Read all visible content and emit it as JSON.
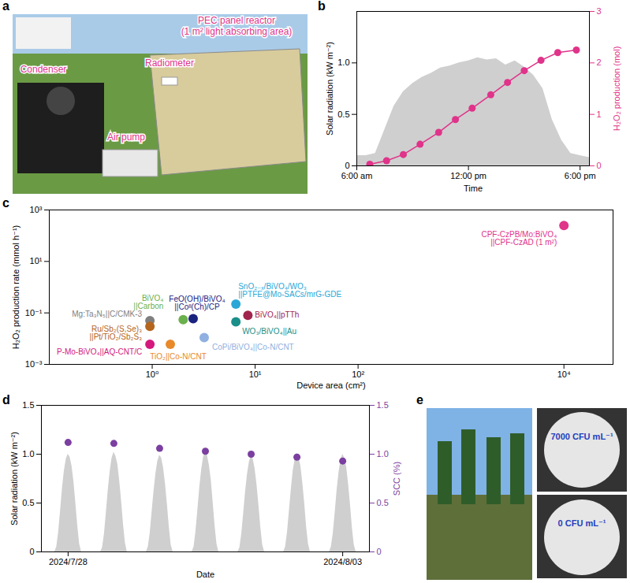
{
  "chart_data": [
    {
      "panel": "a",
      "type": "photo",
      "color": "#e0338a",
      "annotations": [
        "PEC panel reactor (1 m² light absorbing area)",
        "Radiometer",
        "Condenser",
        "Air pump"
      ]
    },
    {
      "panel": "b",
      "type": "combo",
      "x_label": "Time",
      "y_label": "Solar radiation (kW m⁻²)",
      "y2_label": "H₂O₂ production (mol)",
      "xlim": [
        6,
        18.5
      ],
      "xticks": [
        {
          "value": 6,
          "label": "6:00 am"
        },
        {
          "value": 12,
          "label": "12:00 pm"
        },
        {
          "value": 18,
          "label": "6:00 pm"
        }
      ],
      "ylim": [
        0,
        1.5
      ],
      "yticks": [
        0,
        0.5,
        {
          "value": 1,
          "label": "1.0"
        }
      ],
      "y2lim": [
        0,
        3
      ],
      "y2ticks": [
        0,
        1,
        2,
        3
      ],
      "series": [
        {
          "type": "area",
          "color": "#cfcfcf",
          "x": [
            6,
            6.5,
            7,
            7.5,
            8,
            8.5,
            9,
            9.5,
            10,
            10.5,
            11,
            11.5,
            12,
            12.5,
            13,
            13.5,
            14,
            14.5,
            15,
            15.5,
            16,
            16.5,
            17,
            17.5,
            18,
            18.5
          ],
          "values": [
            0.1,
            0.1,
            0.12,
            0.35,
            0.58,
            0.72,
            0.8,
            0.86,
            0.9,
            0.95,
            0.97,
            1.0,
            1.02,
            1.05,
            1.03,
            1.04,
            0.98,
            1.02,
            0.96,
            0.88,
            0.75,
            0.45,
            0.25,
            0.12,
            0.1,
            0.08
          ]
        },
        {
          "type": "line",
          "marker": "circle",
          "color": "#e0338a",
          "axis": "y2",
          "x": [
            6.7,
            7.6,
            8.5,
            9.4,
            10.4,
            11.3,
            12.2,
            13.2,
            14.1,
            15.0,
            15.9,
            16.8,
            17.8
          ],
          "values": [
            0.03,
            0.1,
            0.22,
            0.42,
            0.65,
            0.9,
            1.12,
            1.38,
            1.62,
            1.85,
            2.05,
            2.2,
            2.25
          ]
        }
      ]
    },
    {
      "panel": "c",
      "type": "scatter",
      "log": true,
      "x_label": "Device area (cm²)",
      "y_label": "H₂O₂ production rate (mmol h⁻¹)",
      "xlim": [
        0.1,
        30000
      ],
      "xticks": [
        {
          "value": 1,
          "label": "10⁰"
        },
        {
          "value": 10,
          "label": "10¹"
        },
        {
          "value": 100,
          "label": "10²"
        },
        {
          "value": 10000,
          "label": "10⁴"
        }
      ],
      "ylim": [
        0.001,
        1000
      ],
      "yticks": [
        {
          "value": 0.001,
          "label": "10⁻³"
        },
        {
          "value": 0.1,
          "label": "10⁻¹"
        },
        {
          "value": 10,
          "label": "10¹"
        },
        {
          "value": 1000,
          "label": "10³"
        }
      ],
      "series": [
        {
          "name": "CPF-CzPB/Mo:BiVO₄||CPF-CzAD (1 m²)",
          "color": "#e0338a",
          "x": [
            10000
          ],
          "values": [
            250
          ]
        },
        {
          "name": "SnO₂₋ₓ/BiVO₄/WO₃||PTFE@Mo-SACs/mrG-GDE",
          "color": "#2aa7d6",
          "x": [
            6.5
          ],
          "values": [
            0.22
          ]
        },
        {
          "name": "BiVO₄||pTTh",
          "color": "#a0244e",
          "x": [
            8.5
          ],
          "values": [
            0.08
          ]
        },
        {
          "name": "WO₃/BiVO₄||Au",
          "color": "#1a8f8a",
          "x": [
            6.5
          ],
          "values": [
            0.045
          ]
        },
        {
          "name": "FeO(OH)/BiVO₄||Coᴵᴵ(Ch)/CP",
          "color": "#1a237e",
          "x": [
            2.5
          ],
          "values": [
            0.06
          ]
        },
        {
          "name": "BiVO₄||Carbon",
          "color": "#6ab04c",
          "x": [
            2.0
          ],
          "values": [
            0.055
          ]
        },
        {
          "name": "CoPi/BiVO₄||Co-N/CNT",
          "color": "#8fb0e0",
          "x": [
            3.2
          ],
          "values": [
            0.011
          ]
        },
        {
          "name": "Mg:Ta₃N₅||C/CMK-3",
          "color": "#7f7f7f",
          "x": [
            0.95
          ],
          "values": [
            0.05
          ]
        },
        {
          "name": "Ru/Sb₂(S,Se)₃||Pt/TiO₂/Sb₂S₃",
          "color": "#b5651d",
          "x": [
            0.95
          ],
          "values": [
            0.03
          ]
        },
        {
          "name": "P-Mo-BiVO₄||AQ-CNT/C",
          "color": "#d4187d",
          "x": [
            0.95
          ],
          "values": [
            0.006
          ]
        },
        {
          "name": "TiO₂||Co-N/CNT",
          "color": "#e8892a",
          "x": [
            1.5
          ],
          "values": [
            0.006
          ]
        }
      ]
    },
    {
      "panel": "d",
      "type": "combo",
      "x_label": "Date",
      "y_label": "Solar radiation (kW m⁻²)",
      "y2_label": "SCC (%)",
      "xlim": [
        "2024-07-27T22:00",
        "2024-08-04T02:00"
      ],
      "xticks": [
        {
          "value": "2024-07-28T12:00",
          "label": "2024/7/28"
        },
        {
          "value": "2024-08-03T12:00",
          "label": "2024/8/03"
        }
      ],
      "ylim": [
        0,
        1.5
      ],
      "yticks": [
        0,
        0.5,
        {
          "value": 1,
          "label": "1.0"
        },
        1.5
      ],
      "y2lim": [
        0,
        1.5
      ],
      "y2ticks": [
        0,
        0.5,
        {
          "value": 1,
          "label": "1.0"
        },
        1.5
      ],
      "series": [
        {
          "type": "area",
          "color": "#cfcfcf",
          "x": [
            "2024-07-28T05:00",
            "2024-07-28T06:00",
            "2024-07-28T07:00",
            "2024-07-28T08:00",
            "2024-07-28T09:00",
            "2024-07-28T10:00",
            "2024-07-28T11:00",
            "2024-07-28T12:00",
            "2024-07-28T13:00",
            "2024-07-28T14:00",
            "2024-07-28T15:00",
            "2024-07-28T16:00",
            "2024-07-28T17:00",
            "2024-07-28T18:00",
            "2024-07-28T19:00",
            "2024-07-29T05:00",
            "2024-07-29T06:00",
            "2024-07-29T07:00",
            "2024-07-29T08:00",
            "2024-07-29T09:00",
            "2024-07-29T10:00",
            "2024-07-29T11:00",
            "2024-07-29T12:00",
            "2024-07-29T13:00",
            "2024-07-29T14:00",
            "2024-07-29T15:00",
            "2024-07-29T16:00",
            "2024-07-29T17:00",
            "2024-07-29T18:00",
            "2024-07-29T19:00",
            "2024-07-30T05:00",
            "2024-07-30T06:00",
            "2024-07-30T07:00",
            "2024-07-30T08:00",
            "2024-07-30T09:00",
            "2024-07-30T10:00",
            "2024-07-30T11:00",
            "2024-07-30T12:00",
            "2024-07-30T13:00",
            "2024-07-30T14:00",
            "2024-07-30T15:00",
            "2024-07-30T16:00",
            "2024-07-30T17:00",
            "2024-07-30T18:00",
            "2024-07-30T19:00",
            "2024-07-31T05:00",
            "2024-07-31T06:00",
            "2024-07-31T07:00",
            "2024-07-31T08:00",
            "2024-07-31T09:00",
            "2024-07-31T10:00",
            "2024-07-31T11:00",
            "2024-07-31T12:00",
            "2024-07-31T13:00",
            "2024-07-31T14:00",
            "2024-07-31T15:00",
            "2024-07-31T16:00",
            "2024-07-31T17:00",
            "2024-07-31T18:00",
            "2024-07-31T19:00",
            "2024-08-01T05:00",
            "2024-08-01T06:00",
            "2024-08-01T07:00",
            "2024-08-01T08:00",
            "2024-08-01T09:00",
            "2024-08-01T10:00",
            "2024-08-01T11:00",
            "2024-08-01T12:00",
            "2024-08-01T13:00",
            "2024-08-01T14:00",
            "2024-08-01T15:00",
            "2024-08-01T16:00",
            "2024-08-01T17:00",
            "2024-08-01T18:00",
            "2024-08-01T19:00",
            "2024-08-02T05:00",
            "2024-08-02T06:00",
            "2024-08-02T07:00",
            "2024-08-02T08:00",
            "2024-08-02T09:00",
            "2024-08-02T10:00",
            "2024-08-02T11:00",
            "2024-08-02T12:00",
            "2024-08-02T13:00",
            "2024-08-02T14:00",
            "2024-08-02T15:00",
            "2024-08-02T16:00",
            "2024-08-02T17:00",
            "2024-08-02T18:00",
            "2024-08-02T19:00",
            "2024-08-03T05:00",
            "2024-08-03T06:00",
            "2024-08-03T07:00",
            "2024-08-03T08:00",
            "2024-08-03T09:00",
            "2024-08-03T10:00",
            "2024-08-03T11:00",
            "2024-08-03T12:00",
            "2024-08-03T13:00",
            "2024-08-03T14:00",
            "2024-08-03T15:00",
            "2024-08-03T16:00",
            "2024-08-03T17:00",
            "2024-08-03T18:00",
            "2024-08-03T19:00"
          ],
          "values": [
            0,
            0.05,
            0.2,
            0.42,
            0.65,
            0.83,
            0.95,
            1.0,
            0.97,
            0.88,
            0.72,
            0.5,
            0.27,
            0.08,
            0,
            0,
            0.04,
            0.18,
            0.4,
            0.63,
            0.82,
            0.96,
            1.02,
            0.98,
            0.9,
            0.73,
            0.52,
            0.28,
            0.09,
            0,
            0,
            0.05,
            0.19,
            0.41,
            0.62,
            0.8,
            0.93,
            0.99,
            0.96,
            0.86,
            0.7,
            0.49,
            0.26,
            0.07,
            0,
            0,
            0.05,
            0.21,
            0.43,
            0.66,
            0.84,
            0.97,
            1.03,
            0.99,
            0.89,
            0.74,
            0.51,
            0.27,
            0.08,
            0,
            0,
            0.04,
            0.18,
            0.39,
            0.61,
            0.79,
            0.92,
            0.98,
            0.95,
            0.85,
            0.69,
            0.48,
            0.25,
            0.07,
            0,
            0,
            0.05,
            0.2,
            0.42,
            0.64,
            0.83,
            0.95,
            1.01,
            0.97,
            0.88,
            0.71,
            0.5,
            0.26,
            0.08,
            0,
            0,
            0.05,
            0.19,
            0.4,
            0.63,
            0.81,
            0.94,
            1.0,
            0.96,
            0.87,
            0.7,
            0.49,
            0.25,
            0.07,
            0
          ]
        },
        {
          "type": "scatter",
          "marker": "circle",
          "color": "#7b3fa0",
          "axis": "y2",
          "x": [
            "2024-07-28T12:00",
            "2024-07-29T12:00",
            "2024-07-30T12:00",
            "2024-07-31T12:00",
            "2024-08-01T12:00",
            "2024-08-02T12:00",
            "2024-08-03T12:00"
          ],
          "values": [
            1.12,
            1.11,
            1.06,
            1.03,
            1.0,
            0.97,
            0.93
          ]
        }
      ]
    },
    {
      "panel": "e",
      "type": "photo",
      "color": "#1f3fbf",
      "annotations": [
        "7000 CFU mL⁻¹",
        "0 CFU mL⁻¹"
      ]
    }
  ]
}
